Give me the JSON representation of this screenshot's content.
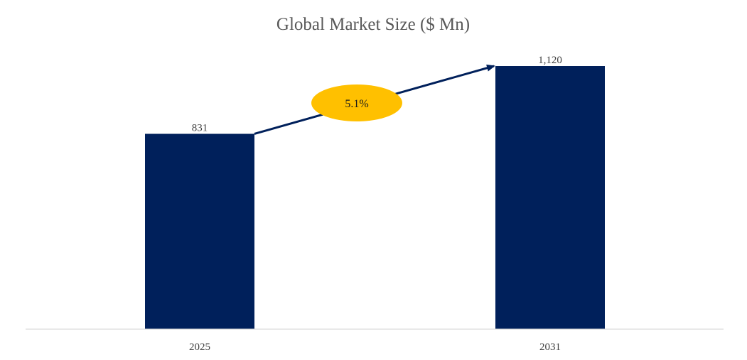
{
  "colors": {
    "bar": "#00205b",
    "baseline": "#d9d9d9",
    "arrow": "#00205b",
    "cagr_badge": "#ffc000",
    "title_text": "#595959",
    "label_text": "#404040"
  },
  "chart_data": {
    "type": "bar",
    "title": "Global Market Size ($ Mn)",
    "categories": [
      "2025",
      "2031"
    ],
    "values": [
      831,
      1120
    ],
    "value_labels": [
      "831",
      "1,120"
    ],
    "xlabel": "",
    "ylabel": "",
    "ylim": [
      0,
      1120
    ],
    "grid": false,
    "legend": "none",
    "annotation": {
      "type": "growth-arrow",
      "label": "5.1%",
      "shape": "ellipse",
      "from_category": "2025",
      "to_category": "2031"
    }
  }
}
